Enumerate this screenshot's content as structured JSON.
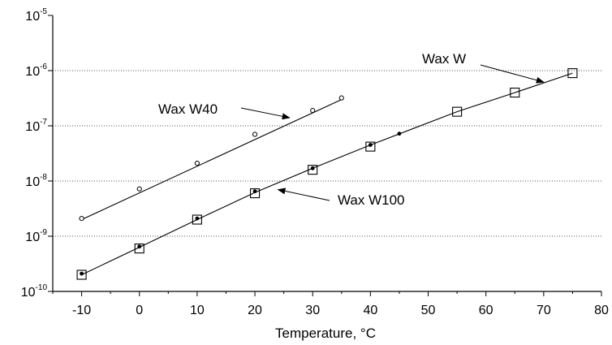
{
  "chart_data": {
    "type": "scatter",
    "title": "",
    "xlabel": "Temperature, °C",
    "ylabel": "",
    "xlim": [
      -15,
      80
    ],
    "ylim": [
      1e-10,
      1e-05
    ],
    "yscale": "log",
    "grid": "horizontal-dotted",
    "x_ticks": [
      "-10",
      "0",
      "10",
      "20",
      "30",
      "40",
      "50",
      "60",
      "70",
      "80"
    ],
    "y_ticks": [
      {
        "base": "10",
        "exp": "-10"
      },
      {
        "base": "10",
        "exp": "-9"
      },
      {
        "base": "10",
        "exp": "-8"
      },
      {
        "base": "10",
        "exp": "-7"
      },
      {
        "base": "10",
        "exp": "-6"
      },
      {
        "base": "10",
        "exp": "-5"
      }
    ],
    "series": [
      {
        "name": "Wax W40",
        "marker": "open-circle",
        "points": [
          {
            "x": -10,
            "y": 2.1e-09
          },
          {
            "x": 0,
            "y": 7.2e-09
          },
          {
            "x": 10,
            "y": 2.1e-08
          },
          {
            "x": 20,
            "y": 7e-08
          },
          {
            "x": 30,
            "y": 1.9e-07
          },
          {
            "x": 35,
            "y": 3.2e-07
          }
        ],
        "fit": {
          "x": [
            -10,
            35
          ],
          "y": [
            2e-09,
            3e-07
          ]
        }
      },
      {
        "name": "Wax W100",
        "marker": "filled-dot",
        "points": [
          {
            "x": -10,
            "y": 2.1e-10
          },
          {
            "x": 0,
            "y": 6.5e-10
          },
          {
            "x": 10,
            "y": 2.1e-09
          },
          {
            "x": 20,
            "y": 6.5e-09
          },
          {
            "x": 30,
            "y": 1.7e-08
          },
          {
            "x": 40,
            "y": 4.5e-08
          },
          {
            "x": 45,
            "y": 7.2e-08
          }
        ]
      },
      {
        "name": "Wax W",
        "marker": "open-square",
        "points": [
          {
            "x": -10,
            "y": 2e-10
          },
          {
            "x": 0,
            "y": 6e-10
          },
          {
            "x": 10,
            "y": 2e-09
          },
          {
            "x": 20,
            "y": 6e-09
          },
          {
            "x": 30,
            "y": 1.6e-08
          },
          {
            "x": 40,
            "y": 4.2e-08
          },
          {
            "x": 55,
            "y": 1.8e-07
          },
          {
            "x": 65,
            "y": 4e-07
          },
          {
            "x": 75,
            "y": 9e-07
          }
        ],
        "fit": {
          "x": [
            -10,
            0,
            10,
            20,
            30,
            40,
            55,
            65,
            75
          ],
          "y": [
            2e-10,
            6.3e-10,
            2e-09,
            6.2e-09,
            1.7e-08,
            4.5e-08,
            1.8e-07,
            4e-07,
            9e-07
          ]
        }
      }
    ],
    "annotations": [
      {
        "text": "Wax W40",
        "arrow_to": {
          "x": 26,
          "y": 1.4e-07
        }
      },
      {
        "text": "Wax W100",
        "arrow_to": {
          "x": 24,
          "y": 7e-09
        }
      },
      {
        "text": "Wax W",
        "arrow_to": {
          "x": 70,
          "y": 6.2e-07
        }
      }
    ]
  }
}
